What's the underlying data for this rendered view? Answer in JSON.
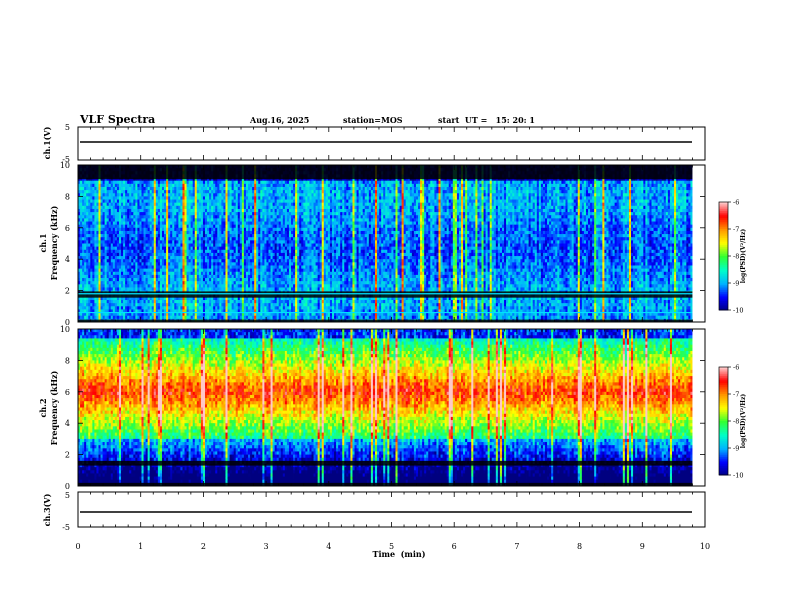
{
  "header": {
    "title": "VLF Spectra",
    "date": "Aug.16, 2025",
    "station": "station=MOS",
    "start_ut": "start  UT =   15: 20: 1"
  },
  "chart_data": [
    {
      "type": "line",
      "name": "ch1-waveform",
      "ylabel": "ch.1(V)",
      "ylim": [
        -5,
        5
      ],
      "yticklabels": [
        "5",
        "-5"
      ],
      "series": [
        {
          "values_description_level": 0
        }
      ],
      "level": 0
    },
    {
      "type": "heatmap",
      "name": "ch1-spectrogram",
      "ylabel_line1": "ch.1",
      "ylabel_line2": "Frequency (kHz)",
      "ylim": [
        0,
        10
      ],
      "yticks": [
        0,
        2,
        4,
        6,
        8,
        10
      ],
      "xlim": [
        0,
        10
      ],
      "data_end_min": 9.8,
      "colorbar": {
        "range": [
          -10,
          -6
        ],
        "ticks": [
          "-6",
          "-7",
          "-8",
          "-9",
          "-10"
        ],
        "label": "log(PSD)(V²/Hz)"
      },
      "horizontal_lines_khz": [
        1.8,
        0.6
      ],
      "dark_bands_khz": [
        [
          9.1,
          10
        ],
        [
          1.55,
          1.95
        ],
        [
          0,
          0.15
        ]
      ]
    },
    {
      "type": "heatmap",
      "name": "ch2-spectrogram",
      "ylabel_line1": "ch.2",
      "ylabel_line2": "Frequency (kHz)",
      "ylim": [
        0,
        10
      ],
      "yticks": [
        0,
        2,
        4,
        6,
        8,
        10
      ],
      "xlim": [
        0,
        10
      ],
      "data_end_min": 9.8,
      "peak_band_khz": [
        4.5,
        7.5
      ],
      "colorbar": {
        "range": [
          -10,
          -6
        ],
        "ticks": [
          "-6",
          "-7",
          "-8",
          "-9",
          "-10"
        ],
        "label": "log(PSD)(V²/Hz)"
      },
      "dark_bands_khz": [
        [
          1.3,
          1.6
        ],
        [
          0,
          0.2
        ]
      ]
    },
    {
      "type": "line",
      "name": "ch3-waveform",
      "ylabel": "ch.3(V)",
      "ylim": [
        -5,
        5
      ],
      "yticklabels": [
        "5",
        "-5"
      ],
      "level": 0
    }
  ],
  "xaxis": {
    "label": "Time  (min)",
    "ticks": [
      "0",
      "1",
      "2",
      "3",
      "4",
      "5",
      "6",
      "7",
      "8",
      "9",
      "10"
    ],
    "xlim": [
      0,
      10
    ]
  },
  "colors": {
    "colormap": [
      "#000080",
      "#0000ff",
      "#00b4ff",
      "#00ffc8",
      "#32ff32",
      "#ffff00",
      "#ff9600",
      "#ff0000",
      "#ffc8c8"
    ]
  }
}
